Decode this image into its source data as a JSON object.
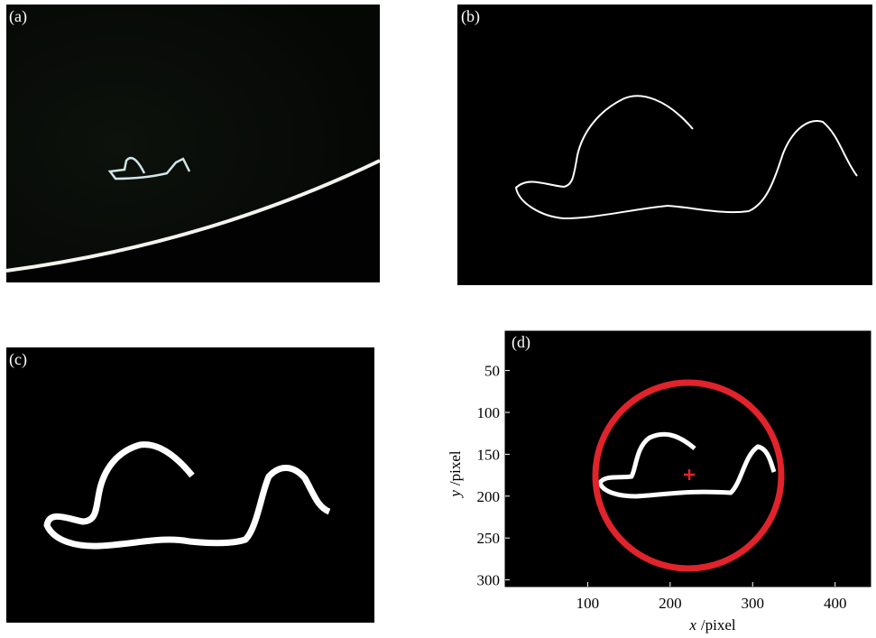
{
  "panels": [
    {
      "label": "(a)"
    },
    {
      "label": "(b)"
    },
    {
      "label": "(c)"
    },
    {
      "label": "(d)"
    }
  ],
  "axes": {
    "xlim": [
      0,
      443
    ],
    "ylim": [
      3,
      308
    ],
    "xticks": [
      100,
      200,
      300,
      400
    ],
    "yticks": [
      50,
      100,
      150,
      200,
      250,
      300
    ],
    "x_label": {
      "var": "x",
      "unit": "/pixel"
    },
    "y_label": {
      "var": "y",
      "unit": "/pixel"
    }
  }
}
